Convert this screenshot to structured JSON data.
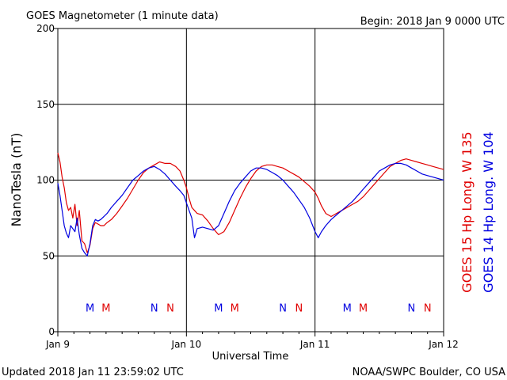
{
  "header": {
    "title": "GOES Magnetometer (1 minute data)",
    "begin": "Begin:  2018 Jan 9 0000 UTC"
  },
  "footer": {
    "updated": "Updated 2018 Jan 11 23:59:02 UTC",
    "credit": "NOAA/SWPC Boulder, CO USA"
  },
  "chart_data": {
    "type": "line",
    "ylabel": "NanoTesla (nT)",
    "xlabel": "Universal Time",
    "ylim": [
      0,
      200
    ],
    "yticks": [
      0,
      50,
      100,
      150,
      200
    ],
    "xlim": [
      0,
      72
    ],
    "xticks": [
      {
        "x": 0,
        "label": "Jan 9"
      },
      {
        "x": 24,
        "label": "Jan 10"
      },
      {
        "x": 48,
        "label": "Jan 11"
      },
      {
        "x": 72,
        "label": "Jan 12"
      }
    ],
    "grid": true,
    "legend_position": "right-vertical",
    "series": [
      {
        "name": "GOES 15 Hp  Long. W 135",
        "color": "#e00000",
        "x": [
          0,
          0.4,
          0.8,
          1.2,
          1.6,
          2.0,
          2.4,
          2.8,
          3.2,
          3.6,
          4.0,
          4.5,
          5.0,
          5.5,
          6.0,
          6.5,
          7.0,
          7.5,
          8.0,
          8.6,
          9.2,
          10.0,
          11.0,
          12.0,
          13.0,
          14.0,
          15.0,
          16.0,
          17.0,
          18.0,
          19.0,
          20.0,
          21.0,
          22.0,
          22.8,
          23.5,
          24.0,
          24.5,
          25.0,
          25.5,
          26.0,
          27.0,
          28.0,
          29.0,
          30.0,
          31.0,
          32.0,
          33.0,
          34.0,
          35.0,
          36.0,
          37.0,
          38.0,
          39.0,
          40.0,
          41.0,
          42.0,
          43.0,
          44.0,
          45.0,
          46.0,
          47.0,
          48.0,
          48.6,
          49.2,
          50.0,
          51.0,
          52.0,
          53.0,
          54.0,
          55.0,
          56.0,
          57.0,
          58.0,
          59.0,
          60.0,
          61.0,
          62.0,
          63.0,
          64.0,
          65.0,
          66.0,
          67.0,
          68.0,
          69.0,
          70.0,
          71.0,
          72.0
        ],
        "values": [
          118,
          112,
          102,
          95,
          85,
          80,
          82,
          75,
          84,
          70,
          80,
          60,
          58,
          52,
          57,
          68,
          72,
          71,
          70,
          70,
          72,
          74,
          78,
          83,
          88,
          94,
          100,
          105,
          108,
          110,
          112,
          111,
          111,
          109,
          106,
          100,
          95,
          88,
          82,
          80,
          78,
          77,
          73,
          68,
          64,
          66,
          72,
          80,
          88,
          95,
          101,
          106,
          109,
          110,
          110,
          109,
          108,
          106,
          104,
          102,
          99,
          96,
          92,
          88,
          83,
          78,
          76,
          78,
          80,
          82,
          84,
          86,
          89,
          93,
          97,
          101,
          105,
          109,
          111,
          113,
          114,
          113,
          112,
          111,
          110,
          109,
          108,
          107
        ]
      },
      {
        "name": "GOES 14 Hp  Long. W 104",
        "color": "#0000e0",
        "x": [
          0,
          0.4,
          0.8,
          1.2,
          1.6,
          2.0,
          2.4,
          2.8,
          3.2,
          3.6,
          4.0,
          4.5,
          5.0,
          5.5,
          6.0,
          6.5,
          7.0,
          7.5,
          8.0,
          8.6,
          9.2,
          10.0,
          11.0,
          12.0,
          13.0,
          14.0,
          15.0,
          16.0,
          17.0,
          18.0,
          19.0,
          20.0,
          21.0,
          22.0,
          22.8,
          23.5,
          24.0,
          24.5,
          25.0,
          25.5,
          26.0,
          27.0,
          28.0,
          29.0,
          30.0,
          31.0,
          32.0,
          33.0,
          34.0,
          35.0,
          36.0,
          37.0,
          38.0,
          39.0,
          40.0,
          41.0,
          42.0,
          43.0,
          44.0,
          45.0,
          46.0,
          47.0,
          48.0,
          48.6,
          49.2,
          50.0,
          51.0,
          52.0,
          53.0,
          54.0,
          55.0,
          56.0,
          57.0,
          58.0,
          59.0,
          60.0,
          61.0,
          62.0,
          63.0,
          64.0,
          65.0,
          66.0,
          67.0,
          68.0,
          69.0,
          70.0,
          71.0,
          72.0
        ],
        "values": [
          98,
          90,
          80,
          70,
          65,
          62,
          70,
          68,
          66,
          75,
          64,
          55,
          52,
          50,
          58,
          70,
          74,
          73,
          74,
          76,
          78,
          82,
          86,
          90,
          95,
          100,
          103,
          106,
          108,
          109,
          107,
          104,
          100,
          96,
          93,
          90,
          85,
          80,
          75,
          62,
          68,
          69,
          68,
          67,
          70,
          78,
          86,
          93,
          98,
          102,
          106,
          108,
          108,
          107,
          105,
          103,
          100,
          96,
          92,
          87,
          82,
          75,
          66,
          62,
          66,
          70,
          74,
          77,
          80,
          83,
          86,
          90,
          94,
          98,
          102,
          106,
          108,
          110,
          111,
          111,
          110,
          108,
          106,
          104,
          103,
          102,
          101,
          100
        ]
      }
    ],
    "markers": [
      {
        "x": 6,
        "label": "M",
        "color": "#0000e0"
      },
      {
        "x": 9,
        "label": "M",
        "color": "#e00000"
      },
      {
        "x": 18,
        "label": "N",
        "color": "#0000e0"
      },
      {
        "x": 21,
        "label": "N",
        "color": "#e00000"
      },
      {
        "x": 30,
        "label": "M",
        "color": "#0000e0"
      },
      {
        "x": 33,
        "label": "M",
        "color": "#e00000"
      },
      {
        "x": 42,
        "label": "N",
        "color": "#0000e0"
      },
      {
        "x": 45,
        "label": "N",
        "color": "#e00000"
      },
      {
        "x": 54,
        "label": "M",
        "color": "#0000e0"
      },
      {
        "x": 57,
        "label": "M",
        "color": "#e00000"
      },
      {
        "x": 66,
        "label": "N",
        "color": "#0000e0"
      },
      {
        "x": 69,
        "label": "N",
        "color": "#e00000"
      }
    ],
    "marker_y": 16
  }
}
